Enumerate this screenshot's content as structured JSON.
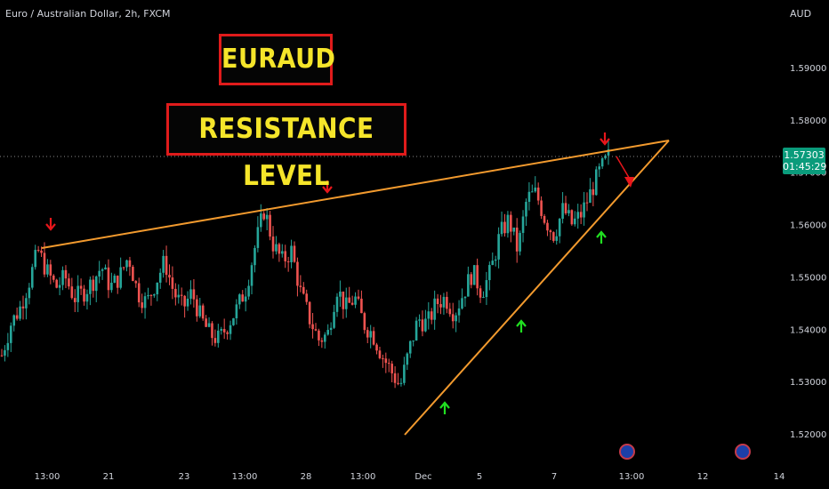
{
  "header": {
    "symbol_line": "Euro / Australian Dollar, 2h, FXCM",
    "currency": "AUD"
  },
  "annotations": {
    "title": "EURAUD",
    "subtitle": "RESISTANCE LEVEL"
  },
  "price_tag": {
    "price": "1.57303",
    "countdown": "01:45:29"
  },
  "colors": {
    "up": "#26a69a",
    "down": "#ef5350",
    "trendline": "#f29a2e",
    "red_arrow": "#e8161b",
    "green_arrow": "#21e021",
    "title_text": "#f5e52a",
    "title_border": "#e01b1b",
    "price_tag": "#0a9b7b"
  },
  "chart_data": {
    "type": "candlestick",
    "y_axis": {
      "ticks": [
        "1.59000",
        "1.58000",
        "1.57000",
        "1.56000",
        "1.55000",
        "1.54000",
        "1.53000",
        "1.52000"
      ],
      "range": [
        1.516,
        1.6
      ]
    },
    "x_axis": {
      "ticks": [
        "13:00",
        "21",
        "23",
        "13:00",
        "28",
        "13:00",
        "Dec",
        "5",
        "7",
        "13:00",
        "12",
        "14"
      ]
    },
    "current_price": 1.57303,
    "series_close": [
      1.535,
      1.541,
      1.544,
      1.549,
      1.555,
      1.551,
      1.548,
      1.55,
      1.546,
      1.547,
      1.549,
      1.552,
      1.548,
      1.55,
      1.554,
      1.547,
      1.545,
      1.549,
      1.553,
      1.547,
      1.544,
      1.547,
      1.542,
      1.539,
      1.538,
      1.541,
      1.544,
      1.548,
      1.556,
      1.563,
      1.556,
      1.553,
      1.555,
      1.547,
      1.542,
      1.538,
      1.539,
      1.548,
      1.544,
      1.546,
      1.541,
      1.539,
      1.535,
      1.532,
      1.529,
      1.536,
      1.542,
      1.541,
      1.545,
      1.546,
      1.543,
      1.547,
      1.551,
      1.547,
      1.551,
      1.558,
      1.561,
      1.555,
      1.565,
      1.566,
      1.561,
      1.558,
      1.563,
      1.56,
      1.562,
      1.566,
      1.57,
      1.573
    ],
    "trendlines": [
      {
        "name": "resistance",
        "from": "left-high",
        "to": "right-apex"
      },
      {
        "name": "support",
        "from": "Dec-low",
        "to": "right-apex"
      }
    ]
  }
}
